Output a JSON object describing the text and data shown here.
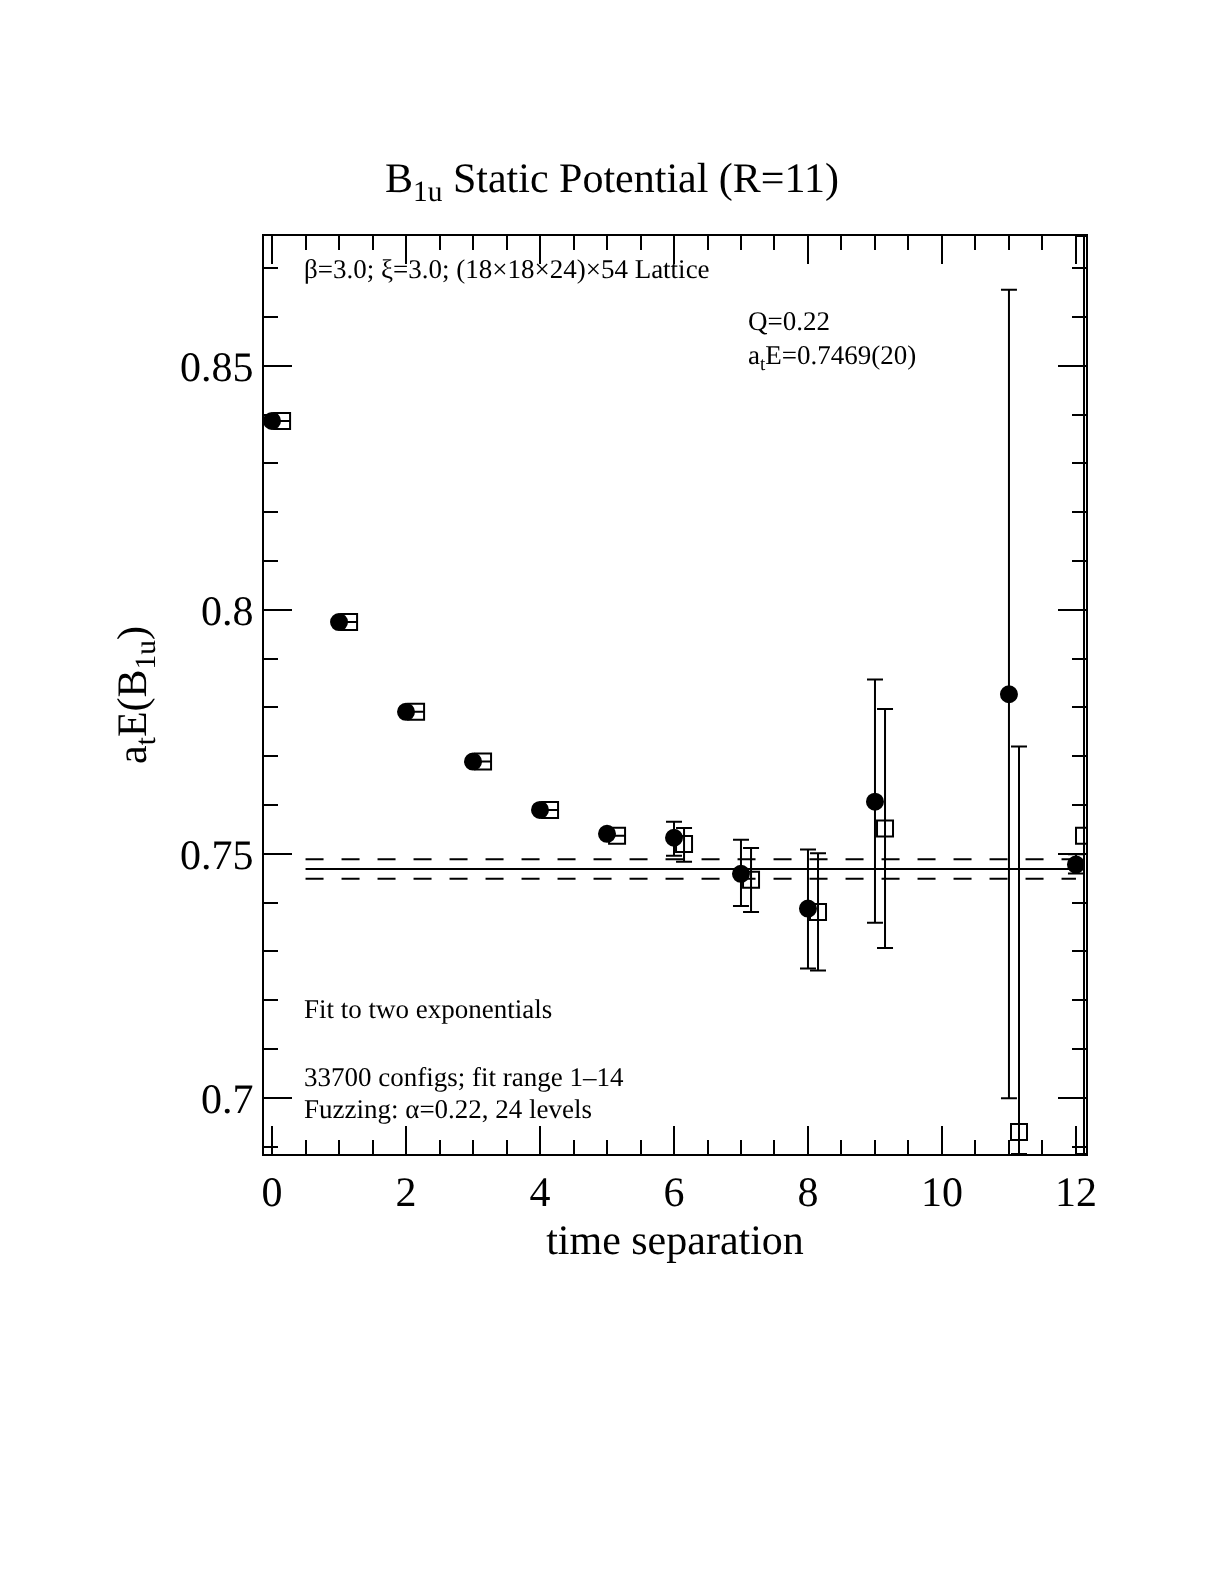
{
  "chart_data": {
    "type": "scatter",
    "title": "B$_{1u}$ Static Potential (R=11)",
    "xlabel": "time separation",
    "ylabel": "a$_{t}$E(B$_{1u}$)",
    "xlim": [
      -0.12,
      12.15
    ],
    "ylim": [
      0.6885,
      0.8766
    ],
    "xticks": [
      0,
      2,
      4,
      6,
      8,
      10,
      12
    ],
    "yticks": [
      0.7,
      0.75,
      0.8,
      0.85
    ],
    "grid": false,
    "series": [
      {
        "marker": "circle",
        "color": "#000000",
        "x": [
          0,
          1,
          2,
          3,
          4,
          5,
          6,
          7,
          8,
          9,
          10,
          11,
          12
        ],
        "values": [
          0.8387,
          0.7975,
          0.7791,
          0.7689,
          0.759,
          0.7541,
          0.7533,
          0.7459,
          0.7388,
          0.7607,
          null,
          0.7827,
          0.7478
        ],
        "errors": [
          null,
          null,
          null,
          null,
          null,
          null,
          [
            0.7496,
            0.7566
          ],
          [
            0.7393,
            0.7529
          ],
          [
            0.7265,
            0.7509
          ],
          [
            0.7359,
            0.7857
          ],
          null,
          [
            0.6999,
            0.8656
          ],
          [
            0.746,
            0.7499
          ]
        ]
      },
      {
        "marker": "square",
        "color": "#000000",
        "x": [
          0.15,
          1.15,
          2.15,
          3.15,
          4.15,
          5.15,
          6.15,
          7.15,
          8.15,
          9.15,
          10.15,
          11.15,
          12.12
        ],
        "values": [
          0.8387,
          0.7975,
          0.7791,
          0.7689,
          0.759,
          0.7537,
          0.752,
          0.7447,
          0.7381,
          0.7552,
          null,
          0.693,
          0.7537
        ],
        "errors": [
          null,
          null,
          null,
          null,
          null,
          null,
          [
            0.7484,
            0.7553
          ],
          [
            0.7381,
            0.7512
          ],
          [
            0.7261,
            0.7501
          ],
          [
            0.7307,
            0.7797
          ],
          null,
          [
            0.6885,
            0.772
          ],
          [
            0.6885,
            0.8766
          ]
        ]
      },
      {
        "type": "line",
        "line_style": "solid",
        "color": "#000000",
        "x": [
          0.5,
          12
        ],
        "values": [
          0.7469,
          0.7469
        ]
      },
      {
        "type": "line",
        "line_style": "dashed",
        "color": "#000000",
        "x": [
          0.5,
          12
        ],
        "values": [
          0.7489,
          0.7489
        ]
      },
      {
        "type": "line",
        "line_style": "dashed",
        "color": "#000000",
        "x": [
          0.5,
          12
        ],
        "values": [
          0.7449,
          0.7449
        ]
      }
    ],
    "annotations": [
      "β=3.0; ξ=3.0; (18×18×24)×54 Lattice",
      "Q=0.22",
      "a$_{t}$E=0.7469(20)",
      "Fit to two exponentials",
      "33700 configs; fit range 1–14",
      "Fuzzing: α=0.22, 24 levels"
    ]
  }
}
